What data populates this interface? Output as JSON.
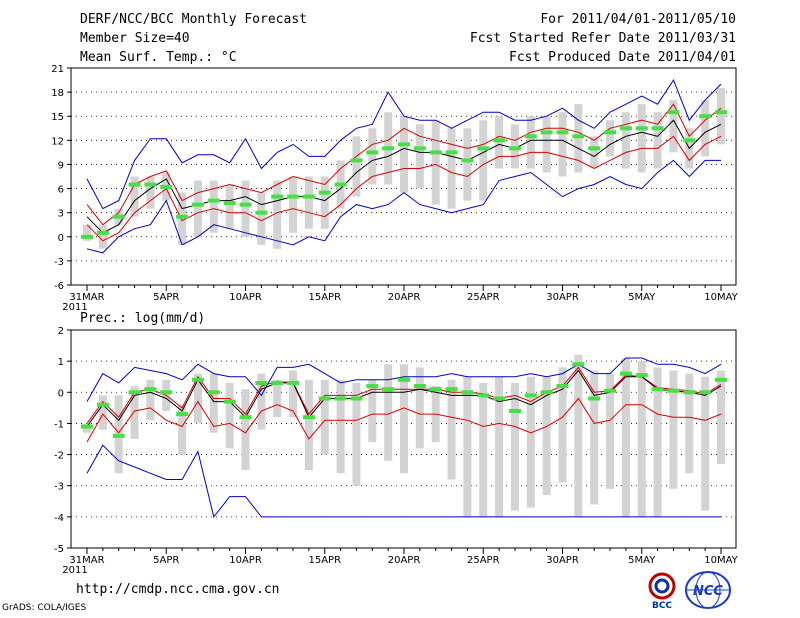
{
  "header": {
    "title": "DERF/NCC/BCC Monthly Forecast",
    "member_size": "Member Size=40",
    "variable": "Mean Surf. Temp.: °C",
    "period": "For 2011/04/01-2011/05/10",
    "started": "Fcst Started Refer Date 2011/03/31",
    "produced": "Fcst Produced Date 2011/04/01"
  },
  "footer": {
    "url": "http://cmdp.ncc.cma.gov.cn",
    "credit": "GrADS: COLA/IGES",
    "logo_bcc": "BCC",
    "logo_ncc": "NCC"
  },
  "colors": {
    "bar": "#d3d3d3",
    "median": "#44e044",
    "envelope": "#0000cc",
    "sigma": "#dd0000",
    "mean": "#000000"
  },
  "chart_data": [
    {
      "type": "line",
      "title": "Mean Surf. Temp.: °C",
      "ylim": [
        -6,
        21
      ],
      "yticks": [
        -6,
        -3,
        0,
        3,
        6,
        9,
        12,
        15,
        18,
        21
      ],
      "xtick_labels": [
        "31MAR\n2011",
        "5APR",
        "10APR",
        "15APR",
        "20APR",
        "25APR",
        "30APR",
        "5MAY",
        "10MAY"
      ],
      "xtick_days": [
        0,
        5,
        10,
        15,
        20,
        25,
        30,
        35,
        40
      ],
      "series": [
        {
          "name": "max",
          "values": [
            7.2,
            3.5,
            4.5,
            9.5,
            12.2,
            12.2,
            9.2,
            10.2,
            10.2,
            9.2,
            12.2,
            8.5,
            10.5,
            11.5,
            10,
            10,
            12,
            13.5,
            14,
            18,
            15,
            14.5,
            14.5,
            13.5,
            14.5,
            15.5,
            15.5,
            14.5,
            14.5,
            15,
            16,
            14.5,
            13.5,
            15.5,
            16.5,
            17.5,
            16.5,
            19.5,
            14.5,
            17,
            19
          ]
        },
        {
          "name": "sigma_upper",
          "values": [
            4,
            1.5,
            3,
            6.5,
            7.5,
            8.2,
            4.5,
            5.5,
            6,
            6.5,
            6,
            5.5,
            6.5,
            7.5,
            7,
            6.5,
            8.5,
            10,
            11.5,
            12,
            13.5,
            12.5,
            12,
            11.5,
            11,
            11.5,
            12.5,
            12,
            13,
            13.5,
            13.5,
            13,
            12,
            13.5,
            14,
            14.5,
            14,
            16.5,
            12.5,
            14.5,
            16
          ]
        },
        {
          "name": "mean",
          "values": [
            2.5,
            0.5,
            1.5,
            4.5,
            6,
            7.2,
            3.5,
            4,
            4.5,
            4.5,
            5,
            4,
            4.5,
            5,
            5,
            4.5,
            6,
            8,
            9.5,
            10,
            11,
            10.5,
            10.5,
            10,
            9.5,
            10.5,
            11.5,
            11,
            12,
            12,
            12,
            11,
            10,
            11.5,
            12.5,
            13,
            12.5,
            14.5,
            11,
            13,
            14
          ]
        },
        {
          "name": "sigma_lower",
          "values": [
            1.5,
            -0.5,
            0.5,
            3,
            4.5,
            6,
            2,
            3,
            3.5,
            3,
            3,
            2,
            3,
            3.5,
            3,
            2.5,
            4,
            6,
            7.5,
            8,
            8.5,
            8.5,
            9,
            8,
            7.5,
            9,
            10,
            10,
            10.5,
            10.5,
            10,
            9.5,
            8.5,
            9.5,
            10.5,
            11,
            11,
            12.5,
            9.5,
            11.5,
            12.5
          ]
        },
        {
          "name": "min",
          "values": [
            -1.5,
            -2,
            0,
            1,
            1.5,
            4.5,
            -1,
            0,
            1.5,
            1,
            0.5,
            0,
            -0.5,
            -1,
            0,
            -0.5,
            2.5,
            4,
            3.5,
            4,
            5.5,
            4,
            3.5,
            3,
            3.5,
            4,
            7,
            7.5,
            8,
            6.5,
            5,
            6,
            6.5,
            7.5,
            6.5,
            6,
            8,
            9.5,
            7.5,
            9.5,
            9.5
          ]
        },
        {
          "name": "median",
          "values": [
            0,
            0.5,
            2.5,
            6.5,
            6.5,
            6.2,
            2.5,
            4,
            4.5,
            4.2,
            4,
            3,
            5,
            5,
            5,
            5.5,
            6.5,
            9.5,
            10.5,
            11,
            11.5,
            11,
            10.5,
            10.5,
            9.5,
            11,
            12,
            11,
            12.5,
            13,
            13,
            12.5,
            11,
            13,
            13.5,
            13.5,
            13.5,
            15.5,
            12,
            15,
            15.5
          ]
        },
        {
          "name": "bar_top",
          "values": [
            1.5,
            1.5,
            3.5,
            7.5,
            7.5,
            8,
            5.5,
            7,
            7,
            6.5,
            7,
            5.5,
            7,
            7.5,
            7.5,
            7.5,
            9.5,
            12.5,
            13.5,
            15.5,
            15,
            14,
            14.5,
            13.5,
            13.5,
            14.5,
            15,
            14,
            15,
            15,
            15.5,
            16.5,
            12.5,
            14.5,
            15.5,
            16.5,
            15.5,
            17,
            13.5,
            17,
            18.5
          ]
        },
        {
          "name": "bar_bottom",
          "values": [
            -0.5,
            -1.5,
            1.5,
            2.5,
            3.5,
            4.5,
            -1,
            0,
            0.5,
            1,
            0,
            -1,
            -1.5,
            0.5,
            1,
            1,
            3.5,
            5,
            6.5,
            6.5,
            5.5,
            6,
            4,
            3.5,
            4.5,
            4.5,
            8.5,
            8.5,
            8.5,
            8,
            7.5,
            8,
            8.5,
            10,
            8.5,
            8,
            8.5,
            10.5,
            8.5,
            10,
            11.5
          ]
        }
      ]
    },
    {
      "type": "line",
      "title": "Prec.: log(mm/d)",
      "ylim": [
        -5,
        2
      ],
      "yticks": [
        -5,
        -4,
        -3,
        -2,
        -1,
        0,
        1,
        2
      ],
      "xtick_labels": [
        "31MAR\n2011",
        "5APR",
        "10APR",
        "15APR",
        "20APR",
        "25APR",
        "30APR",
        "5MAY",
        "10MAY"
      ],
      "xtick_days": [
        0,
        5,
        10,
        15,
        20,
        25,
        30,
        35,
        40
      ],
      "series": [
        {
          "name": "max",
          "values": [
            -0.3,
            0.6,
            0.3,
            0.8,
            0.7,
            0.6,
            0.4,
            0.9,
            0.6,
            0.5,
            0.5,
            -0.1,
            0.8,
            0.8,
            0.9,
            0.6,
            0.3,
            0.4,
            0.4,
            0.4,
            0.5,
            0.5,
            0.5,
            0.6,
            0.5,
            0.5,
            0.5,
            0.5,
            0.6,
            0.5,
            0.6,
            0.9,
            0.6,
            0.6,
            1.1,
            1.1,
            0.9,
            0.9,
            0.8,
            0.6,
            0.9
          ]
        },
        {
          "name": "mean",
          "values": [
            -1.1,
            -0.4,
            -0.9,
            -0.1,
            0,
            -0.2,
            -0.6,
            0.4,
            -0.3,
            -0.3,
            -0.8,
            0.1,
            0.3,
            0.3,
            -0.8,
            -0.2,
            -0.2,
            -0.2,
            0,
            0,
            0,
            0.1,
            0,
            -0.1,
            -0.1,
            -0.1,
            -0.3,
            -0.2,
            -0.4,
            -0.1,
            0.1,
            0.7,
            -0.1,
            0,
            0.5,
            0.5,
            0.1,
            0.05,
            0,
            -0.1,
            0.2
          ]
        },
        {
          "name": "sigma_upper",
          "values": [
            -1,
            -0.3,
            -0.8,
            0,
            0.1,
            -0.1,
            -0.5,
            0.5,
            -0.2,
            -0.2,
            -0.7,
            0.2,
            0.35,
            0.3,
            -0.7,
            -0.1,
            -0.1,
            -0.1,
            0.1,
            0.1,
            0.1,
            0.1,
            0.1,
            0,
            0,
            -0.05,
            -0.2,
            -0.1,
            -0.3,
            0,
            0.2,
            0.8,
            0,
            0.05,
            0.55,
            0.5,
            0.15,
            0.1,
            0.05,
            -0.05,
            0.25
          ]
        },
        {
          "name": "sigma_lower",
          "values": [
            -1.6,
            -0.7,
            -1.3,
            -0.6,
            -0.5,
            -0.9,
            -1.1,
            -0.3,
            -1.1,
            -1,
            -1.3,
            -0.6,
            -0.4,
            -0.6,
            -1.5,
            -0.9,
            -0.9,
            -0.9,
            -0.7,
            -0.7,
            -0.5,
            -0.7,
            -0.7,
            -0.8,
            -0.9,
            -1.1,
            -1,
            -1.1,
            -1.3,
            -1.1,
            -0.8,
            -0.2,
            -1,
            -0.9,
            -0.4,
            -0.4,
            -0.7,
            -0.8,
            -0.8,
            -0.9,
            -0.7
          ]
        },
        {
          "name": "min",
          "values": [
            -2.6,
            -1.7,
            -2.2,
            -2.4,
            -2.6,
            -2.8,
            -2.8,
            -1.9,
            -4,
            -3.35,
            -3.35,
            -4,
            -4,
            -4,
            -4,
            -4,
            -4,
            -4,
            -4,
            -4,
            -4,
            -4,
            -4,
            -4,
            -4,
            -4,
            -4,
            -4,
            -4,
            -4,
            -4,
            -4,
            -4,
            -4,
            -4,
            -4,
            -4,
            -4,
            -4,
            -4,
            -4
          ]
        },
        {
          "name": "median",
          "values": [
            -1.1,
            -0.4,
            -1.4,
            0,
            0.1,
            0,
            -0.7,
            0.4,
            0,
            -0.3,
            -0.8,
            0.3,
            0.3,
            0.3,
            -0.8,
            -0.2,
            -0.2,
            -0.2,
            0.2,
            0.1,
            0.4,
            0.2,
            0.1,
            0.1,
            0,
            -0.1,
            -0.2,
            -0.6,
            -0.1,
            0,
            0.2,
            0.9,
            -0.2,
            0.05,
            0.6,
            0.55,
            0.1,
            0.05,
            0,
            0,
            0.4
          ]
        },
        {
          "name": "bar_top",
          "values": [
            -1,
            -0.1,
            -0.1,
            0.2,
            0.4,
            0.4,
            -0.4,
            0.6,
            0.6,
            0.3,
            0.1,
            0.6,
            0.4,
            0.7,
            0.4,
            0.4,
            0.4,
            0.3,
            0.4,
            0.9,
            0.9,
            0.8,
            0.2,
            0.4,
            0.5,
            0.3,
            0.5,
            0.3,
            0.5,
            0.5,
            0.8,
            1.2,
            0.7,
            0.6,
            1.1,
            1,
            0.8,
            0.7,
            0.6,
            0.5,
            0.7
          ]
        },
        {
          "name": "bar_bottom",
          "values": [
            -1.3,
            -1.2,
            -2.6,
            -1.5,
            -0.9,
            -0.6,
            -2,
            -1,
            -1.3,
            -1.8,
            -2.5,
            -1.2,
            -0.8,
            -0.8,
            -2.5,
            -2,
            -2.6,
            -3,
            -1.6,
            -2.2,
            -2.6,
            -1.8,
            -1.6,
            -2.8,
            -4,
            -4,
            -4,
            -3.8,
            -3.7,
            -3.3,
            -2.9,
            -4,
            -3.6,
            -3.1,
            -4,
            -4,
            -4,
            -3.1,
            -2.6,
            -3.8,
            -2.3
          ]
        }
      ]
    }
  ]
}
